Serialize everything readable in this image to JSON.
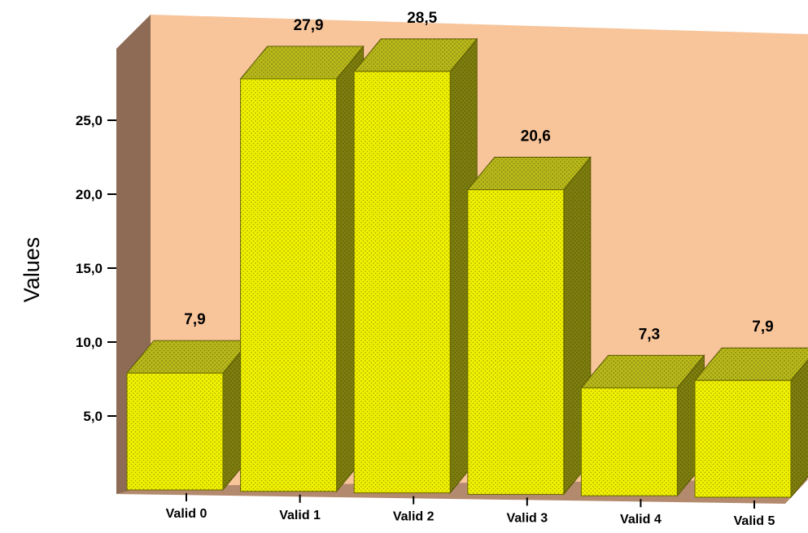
{
  "chart_data": {
    "type": "bar",
    "categories": [
      "Valid 0",
      "Valid 1",
      "Valid 2",
      "Valid 3",
      "Valid 4",
      "Valid 5"
    ],
    "values": [
      7.9,
      27.9,
      28.5,
      20.6,
      7.3,
      7.9
    ],
    "value_labels": [
      "7,9",
      "27,9",
      "28,5",
      "20,6",
      "7,3",
      "7,9"
    ],
    "ylabel": "Values",
    "yticks": [
      5,
      10,
      15,
      20,
      25
    ],
    "ytick_labels": [
      "5,0",
      "10,0",
      "15,0",
      "20,0",
      "25,0"
    ],
    "ylim": [
      0,
      30
    ],
    "style": "3d",
    "grid": false,
    "legend": "none"
  },
  "colors": {
    "bar_front": "#f2f200",
    "bar_top": "#b9b91a",
    "bar_side": "#7f7f0e",
    "back_wall": "#f8c49a",
    "side_wall": "#8d6b55",
    "floor": "#b48a6e"
  }
}
